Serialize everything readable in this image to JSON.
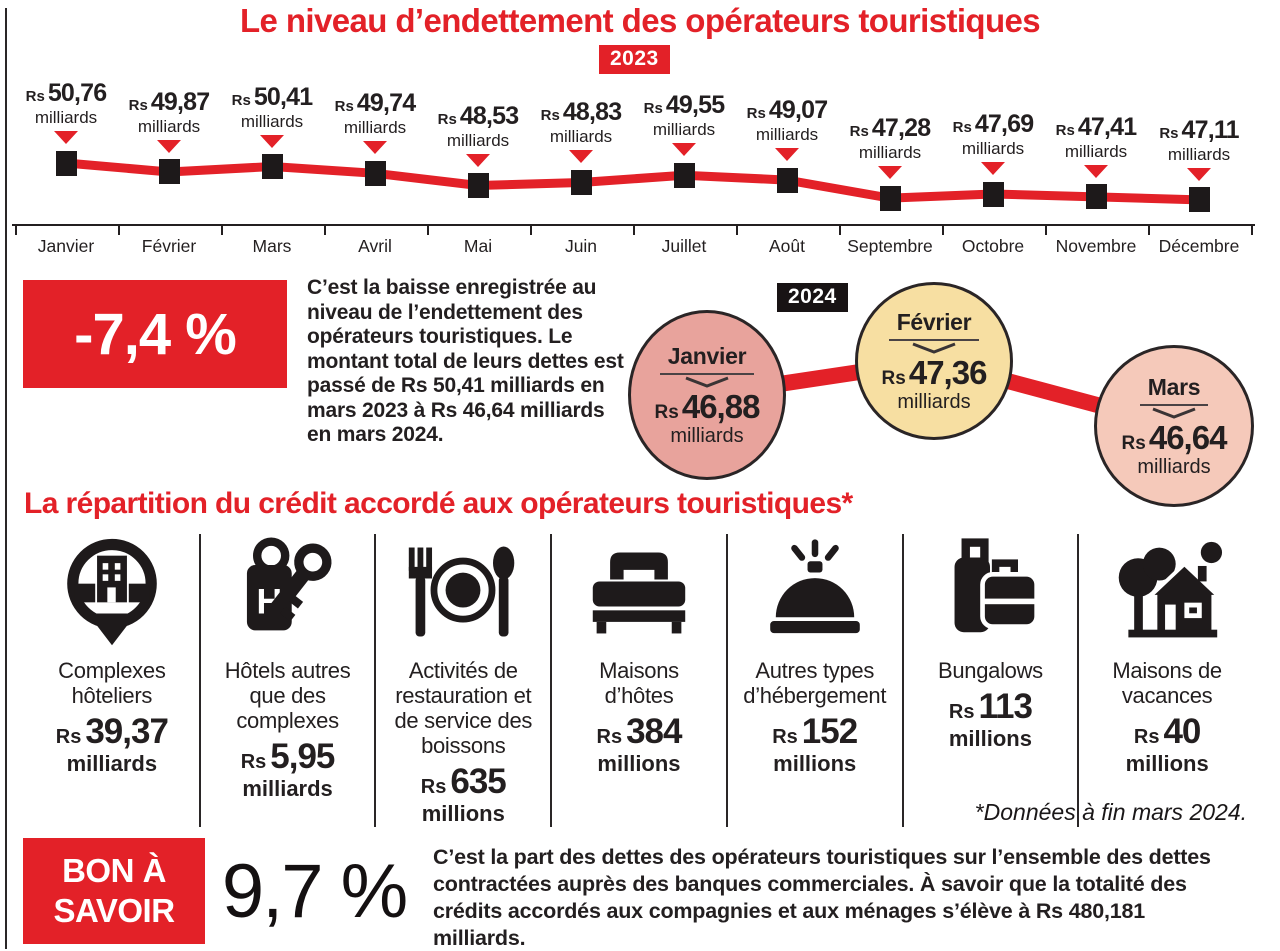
{
  "title": "Le niveau d’endettement des opérateurs touristiques",
  "colors": {
    "accent_red": "#e32128",
    "text_black": "#231f20",
    "circle_janvier": "#e8a39c",
    "circle_fevrier": "#f7dfa2",
    "circle_mars": "#f5c9ba"
  },
  "chart_data": [
    {
      "id": "debt_2023",
      "type": "line",
      "year_badge": "2023",
      "x": [
        "Janvier",
        "Février",
        "Mars",
        "Avril",
        "Mai",
        "Juin",
        "Juillet",
        "Août",
        "Septembre",
        "Octobre",
        "Novembre",
        "Décembre"
      ],
      "values": [
        50.76,
        49.87,
        50.41,
        49.74,
        48.53,
        48.83,
        49.55,
        49.07,
        47.28,
        47.69,
        47.41,
        47.11
      ],
      "value_labels": [
        "50,76",
        "49,87",
        "50,41",
        "49,74",
        "48,53",
        "48,83",
        "49,55",
        "49,07",
        "47,28",
        "47,69",
        "47,41",
        "47,11"
      ],
      "currency": "Rs",
      "unit": "milliards",
      "ylim": [
        46.5,
        51.5
      ],
      "grid": false,
      "legend": "none"
    },
    {
      "id": "debt_2024",
      "type": "line",
      "year_badge": "2024",
      "x": [
        "Janvier",
        "Février",
        "Mars"
      ],
      "values": [
        46.88,
        47.36,
        46.64
      ],
      "labels": [
        "46,88",
        "47,36",
        "46,64"
      ],
      "currency": "Rs",
      "unit": "milliards",
      "point_colors": [
        "#e8a39c",
        "#f7dfa2",
        "#f5c9ba"
      ],
      "grid": false,
      "legend": "none"
    }
  ],
  "highlight": {
    "value": "-7,4 %",
    "text": "C’est la baisse enregistrée au niveau de l’endettement des opérateurs touristiques. Le montant total de leurs dettes est passé de Rs 50,41 milliards en mars 2023 à Rs 46,64 milliards en mars 2024."
  },
  "credit_section": {
    "title": "La répartition du crédit accordé aux opérateurs touristiques*",
    "currency": "Rs",
    "items": [
      {
        "label": "Complexes hôteliers",
        "value": "39,37",
        "unit": "milliards",
        "icon": "hotel-complex-pin"
      },
      {
        "label": "Hôtels autres que des complexes",
        "value": "5,95",
        "unit": "milliards",
        "icon": "hotel-key"
      },
      {
        "label": "Activités de restauration et de service des boissons",
        "value": "635",
        "unit": "millions",
        "icon": "restaurant"
      },
      {
        "label": "Maisons d’hôtes",
        "value": "384",
        "unit": "millions",
        "icon": "bed"
      },
      {
        "label": "Autres types d’hébergement",
        "value": "152",
        "unit": "millions",
        "icon": "service-bell"
      },
      {
        "label": "Bungalows",
        "value": "113",
        "unit": "millions",
        "icon": "luggage"
      },
      {
        "label": "Maisons de vacances",
        "value": "40",
        "unit": "millions",
        "icon": "vacation-house"
      }
    ],
    "footnote": "*Données à fin mars 2024."
  },
  "bon_a_savoir": {
    "label": "BON À SAVOIR",
    "value": "9,7 %",
    "text": "C’est la part des dettes des opérateurs touristiques sur l’ensemble des dettes contractées auprès des banques commerciales. À savoir que la totalité des crédits accordés aux compagnies et aux ménages s’élève à Rs 480,181 milliards."
  }
}
